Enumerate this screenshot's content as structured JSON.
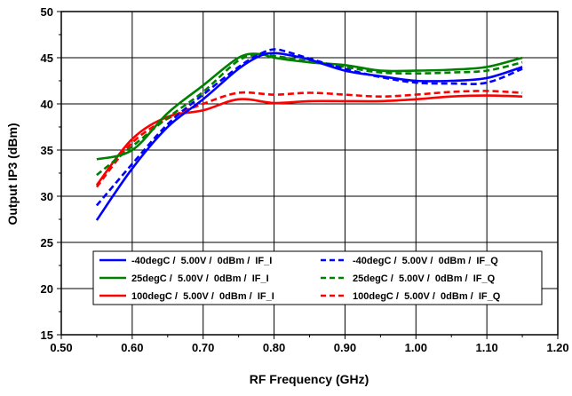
{
  "chart_data": {
    "type": "line",
    "title": "",
    "xlabel": "RF Frequency (GHz)",
    "ylabel": "Output IP3 (dBm)",
    "xlim": [
      0.5,
      1.2
    ],
    "ylim": [
      15,
      50
    ],
    "x_ticks": [
      "0.50",
      "0.60",
      "0.70",
      "0.80",
      "0.90",
      "1.00",
      "1.10",
      "1.20"
    ],
    "y_ticks": [
      "15",
      "20",
      "25",
      "30",
      "35",
      "40",
      "45",
      "50"
    ],
    "grid": true,
    "legend_placement": "bottom-center",
    "series": [
      {
        "name": "-40degC /  5.00V /  0dBm /  IF_I",
        "color": "#0000ff",
        "dash": "solid",
        "x": [
          0.55,
          0.6,
          0.65,
          0.7,
          0.75,
          0.78,
          0.8,
          0.82,
          0.85,
          0.9,
          0.95,
          1.0,
          1.05,
          1.1,
          1.15
        ],
        "y": [
          27.4,
          33.0,
          37.5,
          40.5,
          43.8,
          45.2,
          45.5,
          45.3,
          44.8,
          43.6,
          43.0,
          42.5,
          42.5,
          42.8,
          44.0
        ]
      },
      {
        "name": "25degC /  5.00V /  0dBm /  IF_I",
        "color": "#008000",
        "dash": "solid",
        "x": [
          0.55,
          0.6,
          0.65,
          0.7,
          0.75,
          0.78,
          0.8,
          0.85,
          0.9,
          0.95,
          1.0,
          1.05,
          1.1,
          1.15
        ],
        "y": [
          34.0,
          35.0,
          39.0,
          42.0,
          45.0,
          45.4,
          45.0,
          44.5,
          44.2,
          43.6,
          43.6,
          43.7,
          44.0,
          45.0
        ]
      },
      {
        "name": "100degC /  5.00V /  0dBm /  IF_I",
        "color": "#ff0000",
        "dash": "solid",
        "x": [
          0.55,
          0.6,
          0.65,
          0.7,
          0.75,
          0.8,
          0.85,
          0.9,
          0.95,
          1.0,
          1.05,
          1.1,
          1.15
        ],
        "y": [
          31.2,
          36.2,
          38.6,
          39.3,
          40.5,
          40.1,
          40.3,
          40.3,
          40.3,
          40.5,
          40.8,
          40.9,
          40.8
        ]
      },
      {
        "name": "-40degC /  5.00V /  0dBm /  IF_Q",
        "color": "#0000ff",
        "dash": "dashed",
        "x": [
          0.55,
          0.6,
          0.65,
          0.7,
          0.75,
          0.78,
          0.8,
          0.82,
          0.85,
          0.9,
          0.95,
          1.0,
          1.05,
          1.1,
          1.15
        ],
        "y": [
          29.0,
          33.5,
          37.8,
          41.0,
          44.0,
          45.4,
          45.9,
          45.6,
          44.9,
          43.8,
          42.9,
          42.3,
          42.2,
          42.3,
          43.8
        ]
      },
      {
        "name": "25degC /  5.00V /  0dBm /  IF_Q",
        "color": "#008000",
        "dash": "dashed",
        "x": [
          0.55,
          0.6,
          0.65,
          0.7,
          0.75,
          0.78,
          0.8,
          0.85,
          0.9,
          0.95,
          1.0,
          1.05,
          1.1,
          1.15
        ],
        "y": [
          32.3,
          35.4,
          38.5,
          41.3,
          44.7,
          45.3,
          45.2,
          44.6,
          44.0,
          43.4,
          43.3,
          43.4,
          43.6,
          44.5
        ]
      },
      {
        "name": "100degC /  5.00V /  0dBm /  IF_Q",
        "color": "#ff0000",
        "dash": "dashed",
        "x": [
          0.55,
          0.6,
          0.65,
          0.7,
          0.75,
          0.8,
          0.85,
          0.9,
          0.95,
          1.0,
          1.05,
          1.1,
          1.15
        ],
        "y": [
          31.0,
          35.8,
          38.4,
          40.0,
          41.2,
          41.0,
          41.2,
          41.0,
          40.8,
          41.0,
          41.3,
          41.4,
          41.2
        ]
      }
    ],
    "legend_order": [
      0,
      3,
      1,
      4,
      2,
      5
    ]
  }
}
